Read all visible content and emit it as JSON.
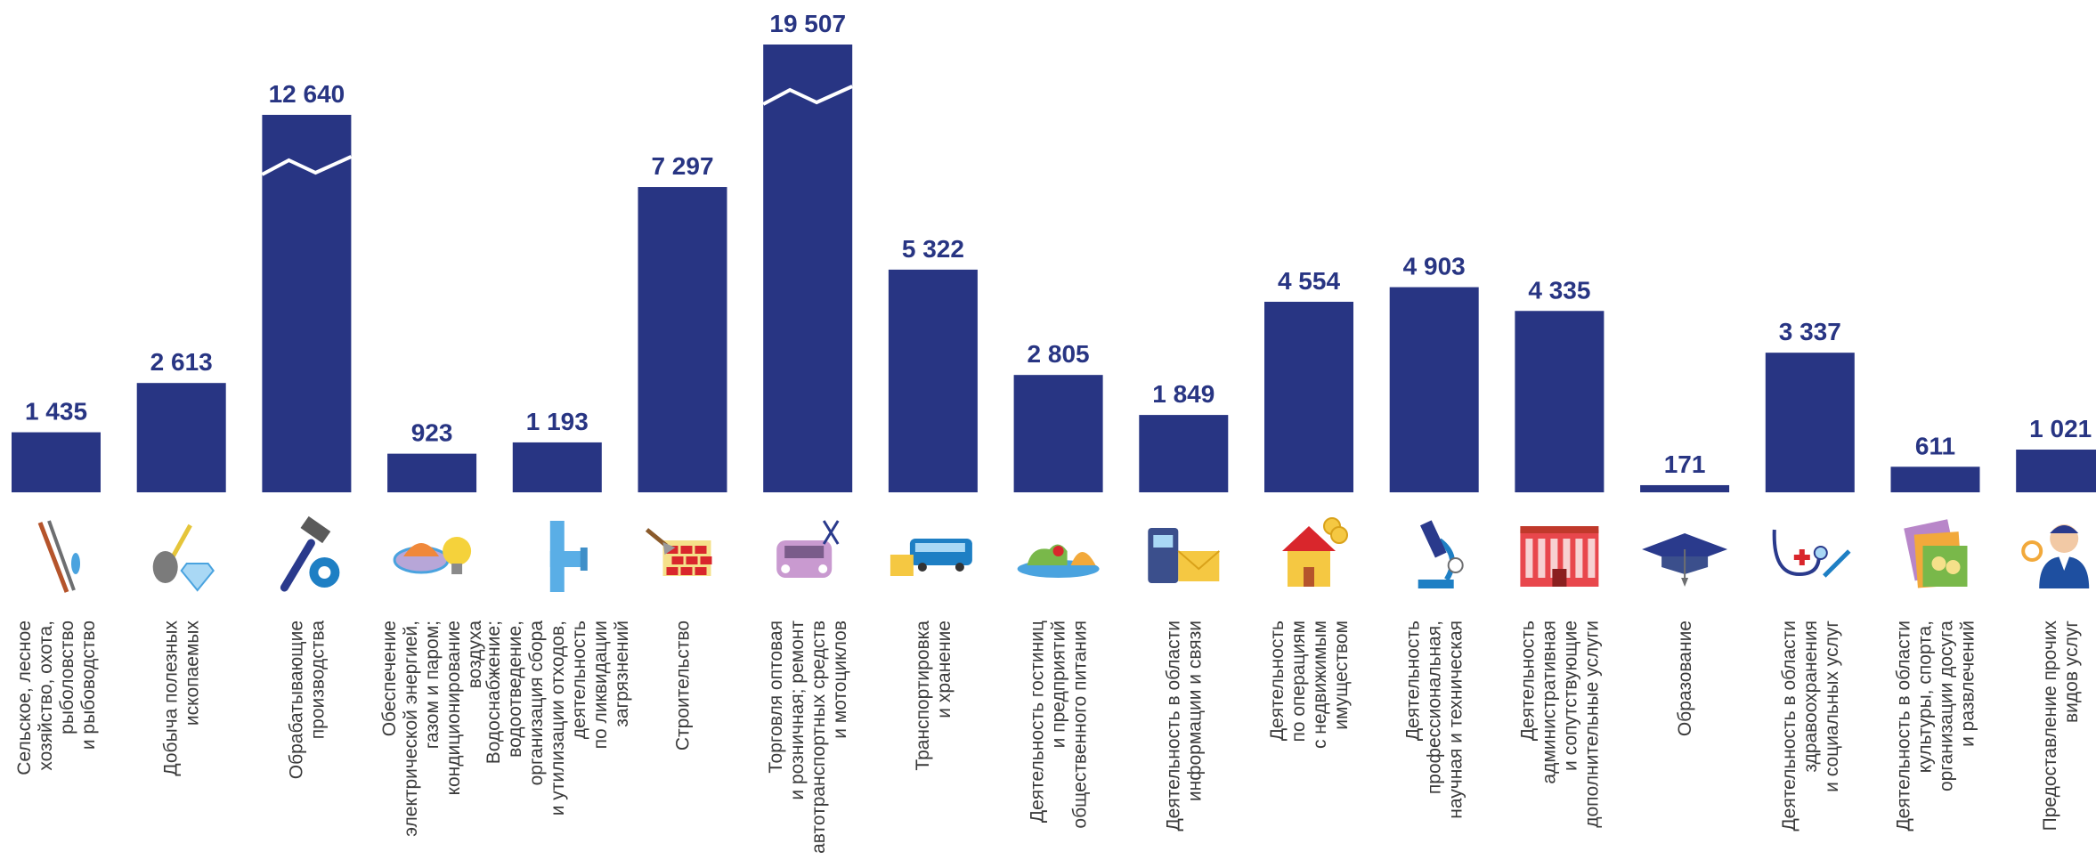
{
  "colors": {
    "bar": "#283583",
    "value_text": "#283583",
    "category_text": "#3a3a3a"
  },
  "chart_data": {
    "type": "bar",
    "title": "",
    "xlabel": "",
    "ylabel": "",
    "ylim": [
      0,
      20000
    ],
    "axis_break": true,
    "categories": [
      {
        "lines": [
          "Сельское, лесное",
          "хозяйство, охота,",
          "рыболовство",
          "и рыбоводство"
        ],
        "icon": "fishing-rods-icon"
      },
      {
        "lines": [
          "Добыча полезных",
          "ископаемых"
        ],
        "icon": "shovel-diamond-icon"
      },
      {
        "lines": [
          "Обрабатывающие",
          "производства"
        ],
        "icon": "hammer-gear-icon"
      },
      {
        "lines": [
          "Обеспечение",
          "электрической энергией,",
          "газом и паром;",
          "кондиционирование",
          "воздуха"
        ],
        "icon": "burner-lightbulb-icon"
      },
      {
        "lines": [
          "Водоснабжение;",
          "водоотведение,",
          "организация сбора",
          "и утилизации отходов,",
          "деятельность",
          "по ликвидации",
          "загрязнений"
        ],
        "icon": "water-pipe-icon"
      },
      {
        "lines": [
          "Строительство"
        ],
        "icon": "brick-wall-trowel-icon"
      },
      {
        "lines": [
          "Торговля оптовая",
          "и розничная; ремонт",
          "автотранспортных средств",
          "и мотоциклов"
        ],
        "icon": "car-repair-icon"
      },
      {
        "lines": [
          "Транспортировка",
          "и хранение"
        ],
        "icon": "bus-box-icon"
      },
      {
        "lines": [
          "Деятельность гостиниц",
          "и предприятий",
          "общественного питания"
        ],
        "icon": "dish-cloche-icon"
      },
      {
        "lines": [
          "Деятельность в области",
          "информации и связи"
        ],
        "icon": "phone-envelope-icon"
      },
      {
        "lines": [
          "Деятельность",
          "по операциям",
          "с недвижимым",
          "имуществом"
        ],
        "icon": "house-coins-icon"
      },
      {
        "lines": [
          "Деятельность",
          "профессиональная,",
          "научная и техническая"
        ],
        "icon": "microscope-icon"
      },
      {
        "lines": [
          "Деятельность",
          "административная",
          "и сопутствующие",
          "дополнительные услуги"
        ],
        "icon": "office-building-icon"
      },
      {
        "lines": [
          "Образование"
        ],
        "icon": "graduation-cap-icon"
      },
      {
        "lines": [
          "Деятельность в области",
          "здравоохранения",
          "и социальных услуг"
        ],
        "icon": "stethoscope-syringe-icon"
      },
      {
        "lines": [
          "Деятельность в области",
          "культуры, спорта,",
          "организации досуга",
          "и развлечений"
        ],
        "icon": "tickets-masks-icon"
      },
      {
        "lines": [
          "Предоставление прочих",
          "видов услуг"
        ],
        "icon": "service-person-icon"
      }
    ],
    "values": [
      1435,
      2613,
      12640,
      923,
      1193,
      7297,
      19507,
      5322,
      2805,
      1849,
      4554,
      4903,
      4335,
      171,
      3337,
      611,
      1021
    ],
    "value_labels": [
      "1 435",
      "2 613",
      "12 640",
      "923",
      "1 193",
      "7 297",
      "19 507",
      "5 322",
      "2 805",
      "1 849",
      "4 554",
      "4 903",
      "4 335",
      "171",
      "3 337",
      "611",
      "1 021"
    ],
    "broken_bars": [
      2,
      6
    ]
  }
}
